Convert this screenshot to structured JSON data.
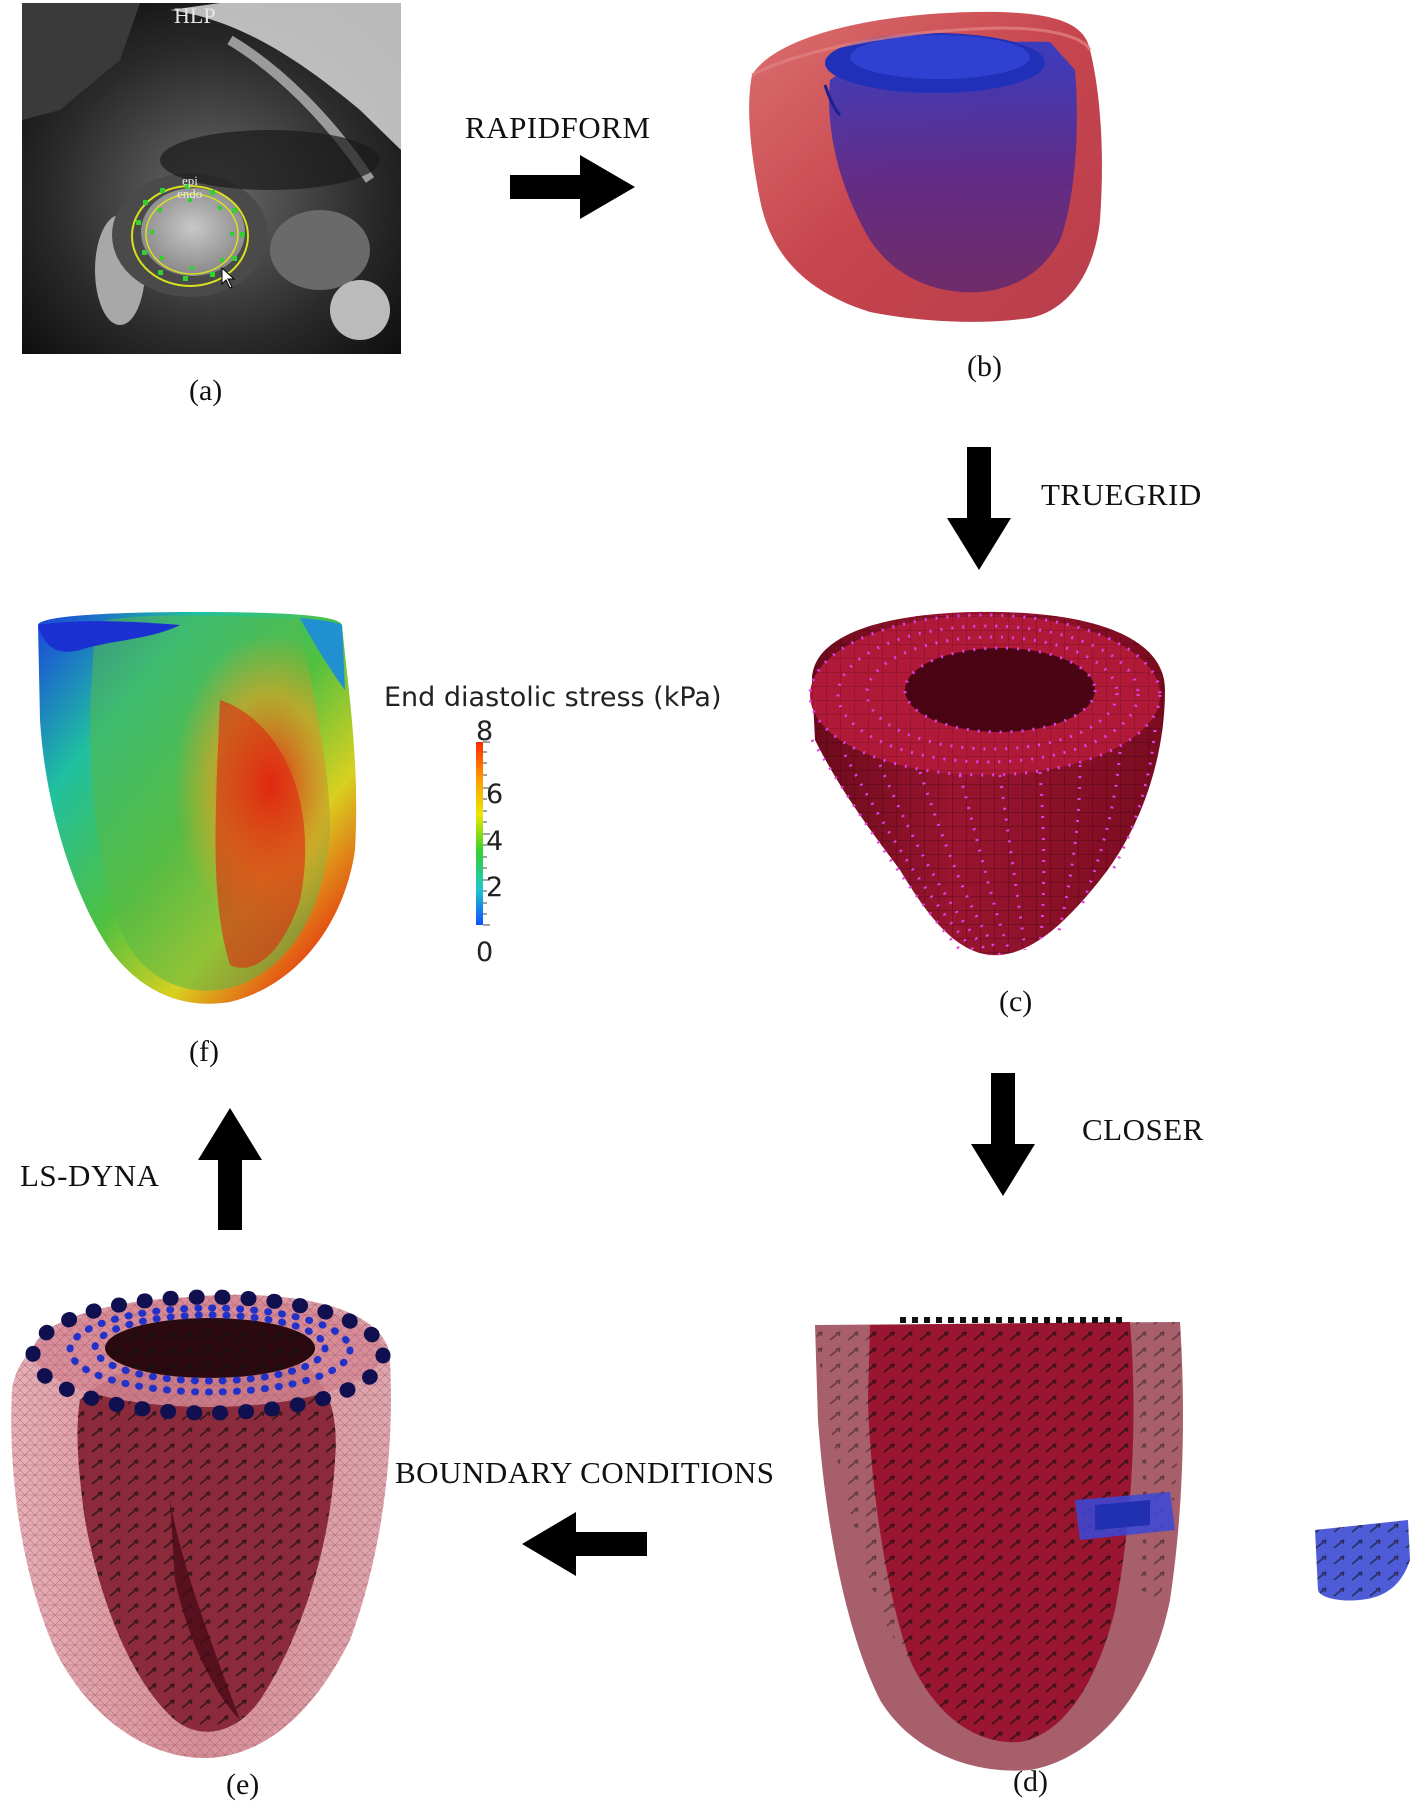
{
  "panels": {
    "a": {
      "caption": "(a)",
      "overlay_header": "HLP",
      "overlay_epi": "epi",
      "overlay_endo": "endo"
    },
    "b": {
      "caption": "(b)"
    },
    "c": {
      "caption": "(c)"
    },
    "d": {
      "caption": "(d)"
    },
    "e": {
      "caption": "(e)"
    },
    "f": {
      "caption": "(f)"
    }
  },
  "steps": {
    "rapidform": "RAPIDFORM",
    "truegrid": "TRUEGRID",
    "closer": "CLOSER",
    "boundary": "BOUNDARY CONDITIONS",
    "lsdyna": "LS-DYNA"
  },
  "colorbar": {
    "title": "End diastolic stress (kPa)",
    "ticks": [
      "8",
      "6",
      "4",
      "2",
      "0"
    ],
    "range": [
      0,
      8
    ],
    "colors": [
      "#ff2a00",
      "#ff9a00",
      "#e8e800",
      "#30d030",
      "#20c8c8",
      "#1050ff"
    ]
  },
  "colors": {
    "mesh_red": "#a3122e",
    "shell_red": "#c0303a",
    "cavity_blue": "#2333b8",
    "node_magenta": "#e040e8",
    "bc_blue": "#2232c8",
    "bc_dark": "#101050"
  }
}
